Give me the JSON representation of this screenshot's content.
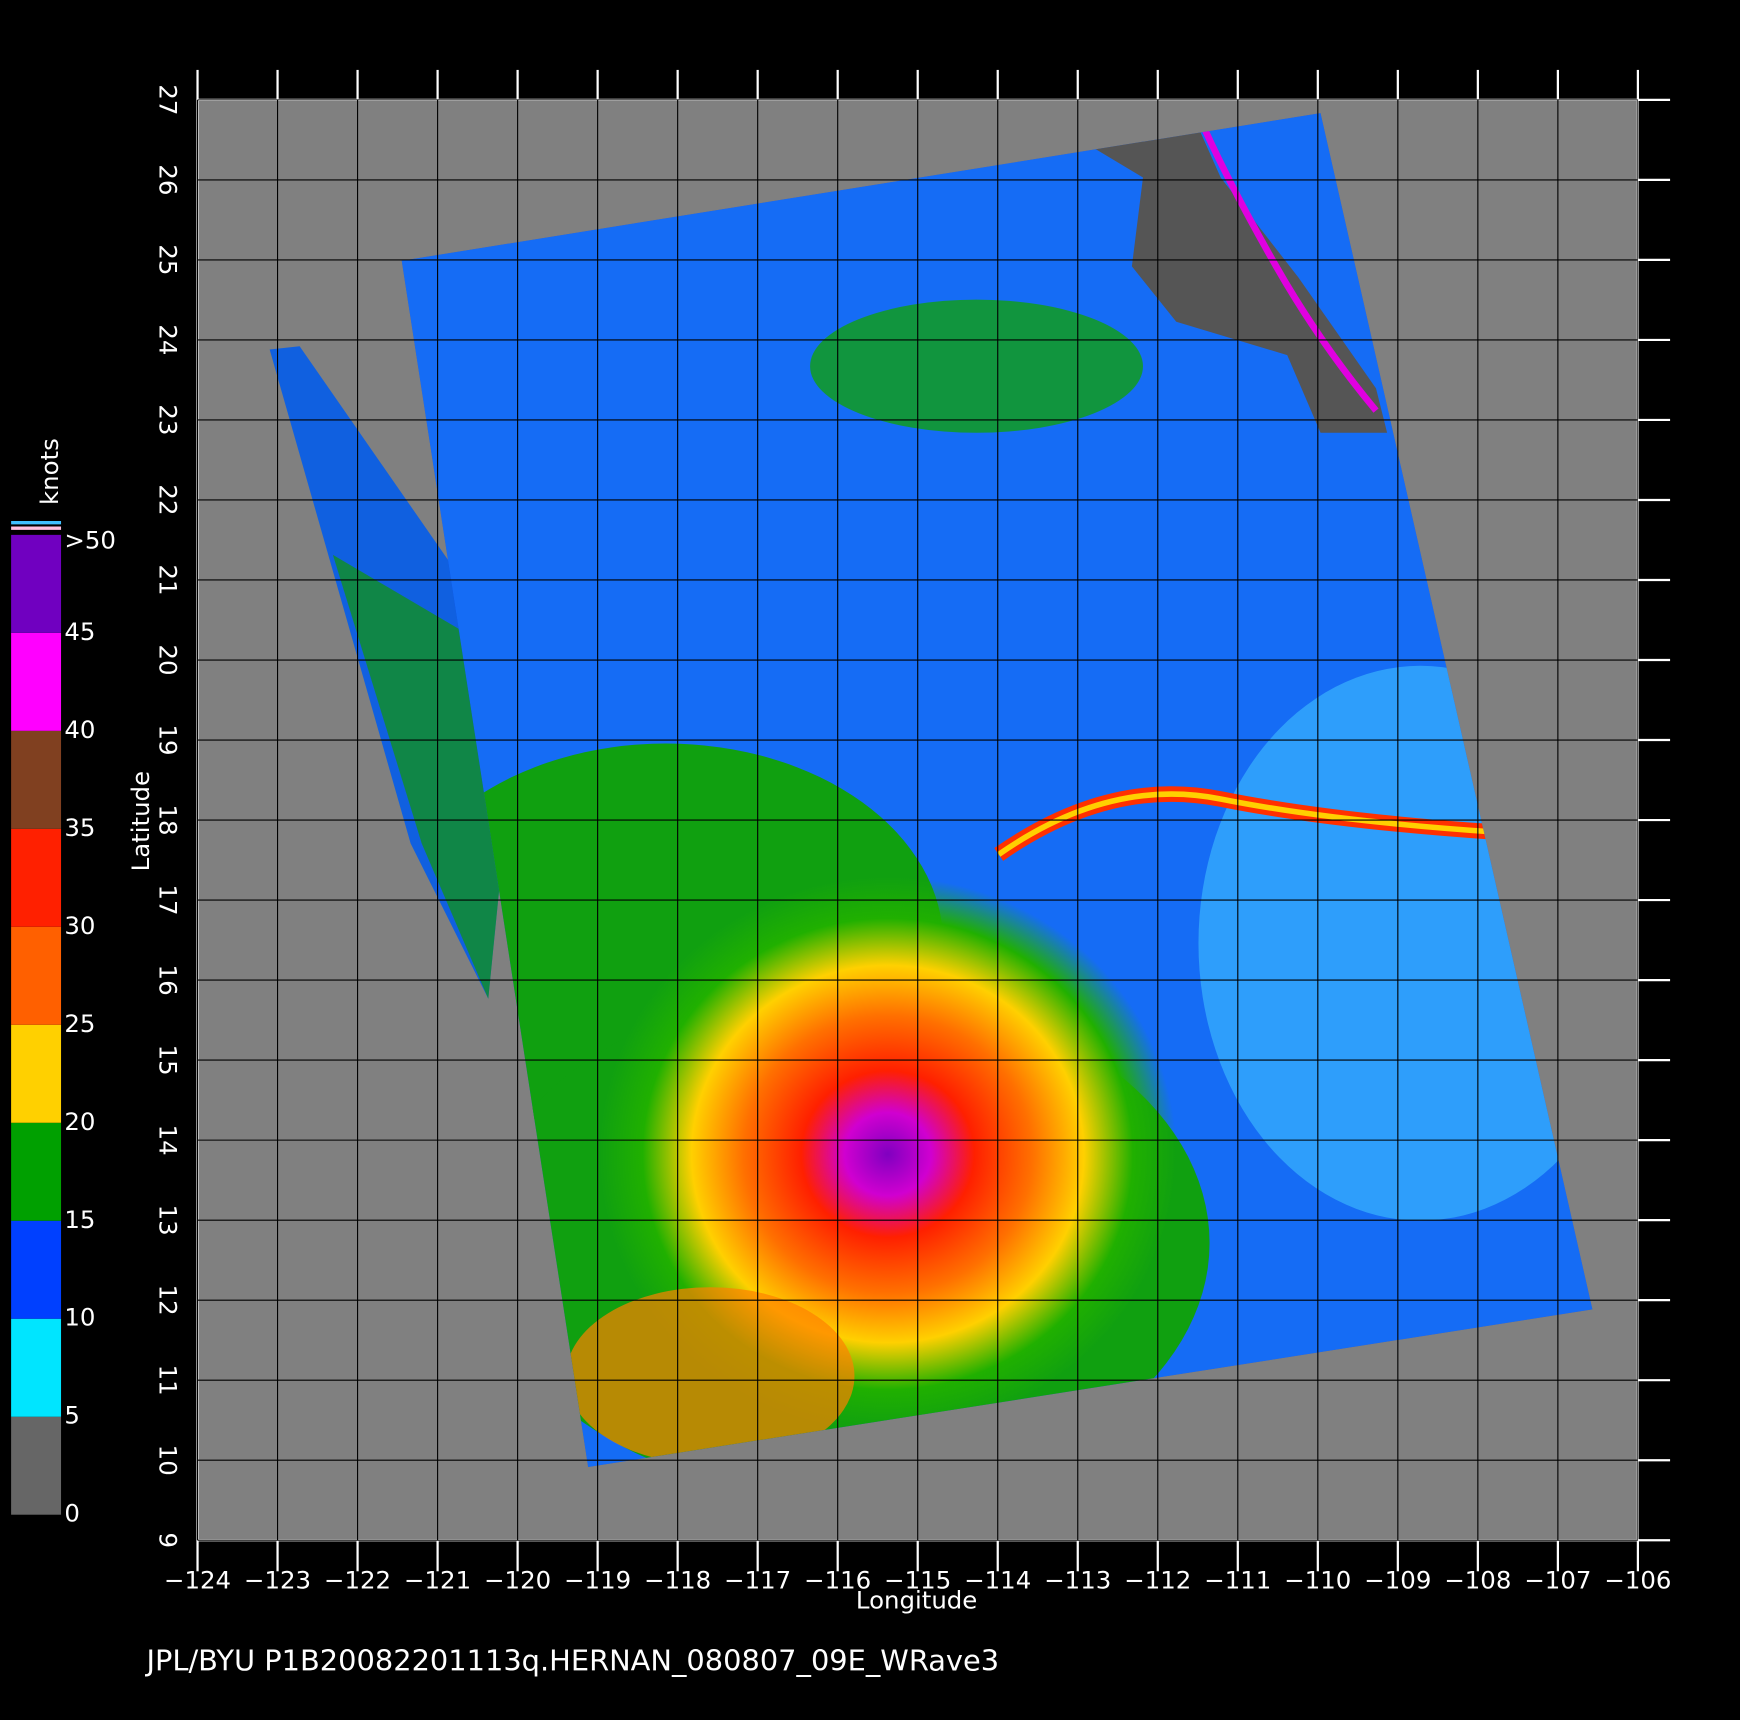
{
  "map": {
    "x_label": "Longitude",
    "y_label": "Latitude",
    "xlim": [
      -124,
      -106
    ],
    "ylim": [
      9,
      27
    ],
    "xticks": [
      -124,
      -123,
      -122,
      -121,
      -120,
      -119,
      -118,
      -117,
      -116,
      -115,
      -114,
      -113,
      -112,
      -111,
      -110,
      -109,
      -108,
      -107,
      -106
    ],
    "yticks": [
      9,
      10,
      11,
      12,
      13,
      14,
      15,
      16,
      17,
      18,
      19,
      20,
      21,
      22,
      23,
      24,
      25,
      26,
      27
    ],
    "grid": true
  },
  "colorbar": {
    "title": "knots",
    "ticks": [
      0,
      5,
      10,
      15,
      20,
      25,
      30,
      35,
      40,
      45,
      {
        "value": 50,
        "label": ">50"
      }
    ],
    "colors": [
      "#666666",
      "#00e5ff",
      "#0040ff",
      "#00a000",
      "#ffd000",
      "#ff6000",
      "#ff2000",
      "#804020",
      "#ff00ff",
      "#7000c0"
    ]
  },
  "footer": "JPL/BYU  P1B20082201113q.HERNAN_080807_09E_WRave3"
}
